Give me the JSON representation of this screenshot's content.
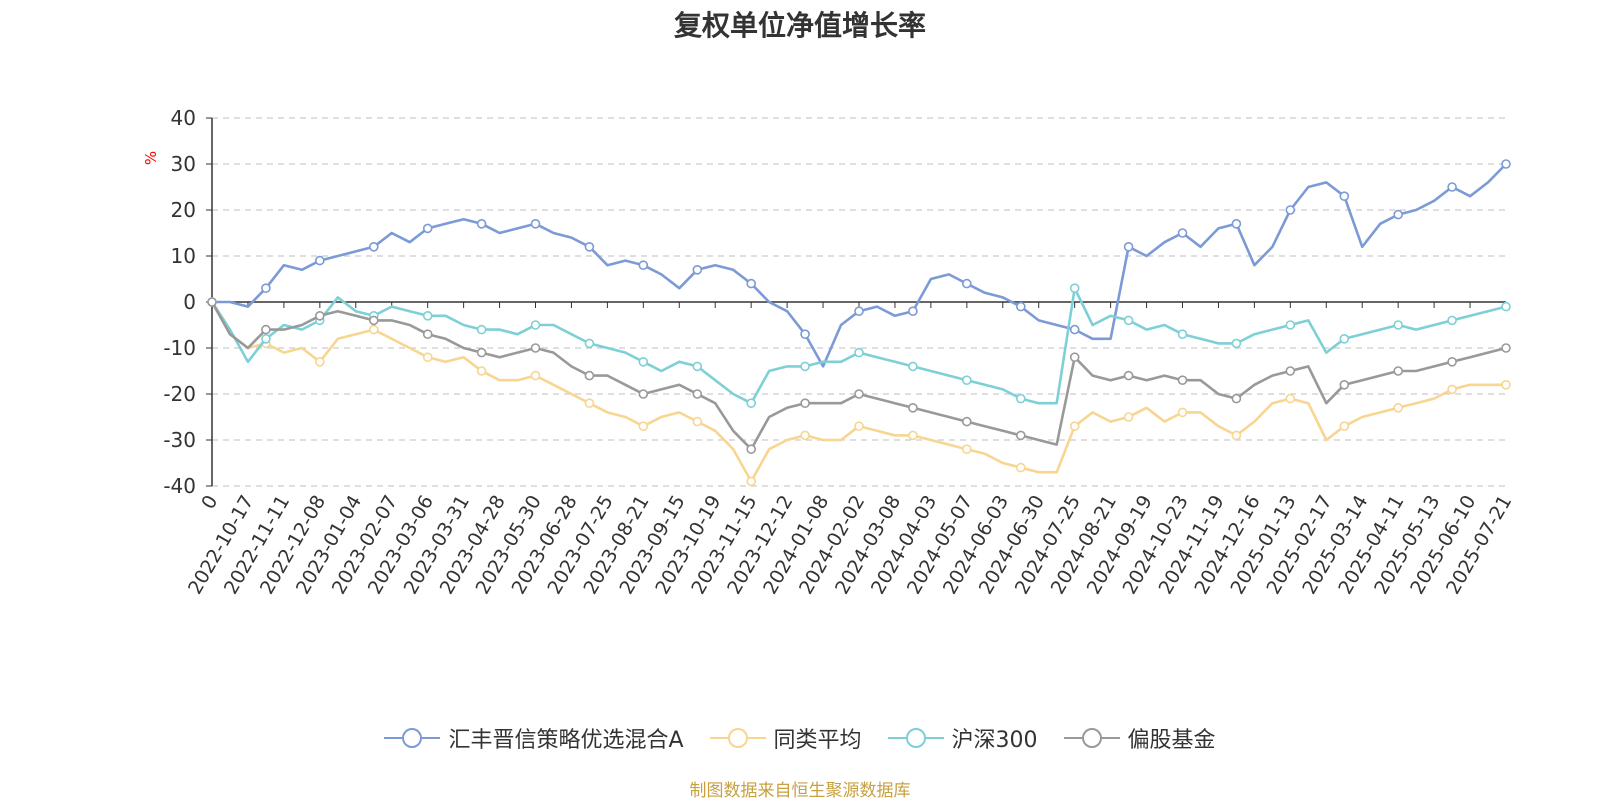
{
  "chart_data": {
    "type": "line",
    "title": "复权单位净值增长率",
    "ylabel": "%",
    "ylim": [
      -40,
      40
    ],
    "yticks": [
      40,
      30,
      20,
      10,
      0,
      -10,
      -20,
      -30,
      -40
    ],
    "x_start_label": "0",
    "xticks": [
      "2022-10-17",
      "2022-11-11",
      "2022-12-08",
      "2023-01-04",
      "2023-02-07",
      "2023-03-06",
      "2023-03-31",
      "2023-04-28",
      "2023-05-30",
      "2023-06-28",
      "2023-07-25",
      "2023-08-21",
      "2023-09-15",
      "2023-10-19",
      "2023-11-15",
      "2023-12-12",
      "2024-01-08",
      "2024-02-02",
      "2024-03-08",
      "2024-04-03",
      "2024-05-07",
      "2024-06-03",
      "2024-06-30",
      "2024-07-25",
      "2024-08-21",
      "2024-09-19",
      "2024-10-23",
      "2024-11-19",
      "2024-12-16",
      "2025-01-13",
      "2025-02-17",
      "2025-03-14",
      "2025-04-11",
      "2025-05-13",
      "2025-06-10",
      "2025-07-21"
    ],
    "grid": true,
    "legend_position": "bottom",
    "series": [
      {
        "name": "汇丰晋信策略优选混合A",
        "color": "#7b9ad6",
        "values": [
          0,
          0,
          -1,
          3,
          8,
          7,
          9,
          10,
          11,
          12,
          15,
          13,
          16,
          17,
          18,
          17,
          15,
          16,
          17,
          15,
          14,
          12,
          8,
          9,
          8,
          6,
          3,
          7,
          8,
          7,
          4,
          0,
          -2,
          -7,
          -14,
          -5,
          -2,
          -1,
          -3,
          -2,
          5,
          6,
          4,
          2,
          1,
          -1,
          -4,
          -5,
          -6,
          -8,
          -8,
          12,
          10,
          13,
          15,
          12,
          16,
          17,
          8,
          12,
          20,
          25,
          26,
          23,
          12,
          17,
          19,
          20,
          22,
          25,
          23,
          26,
          30
        ]
      },
      {
        "name": "同类平均",
        "color": "#f8d590",
        "values": [
          0,
          -7,
          -10,
          -9,
          -11,
          -10,
          -13,
          -8,
          -7,
          -6,
          -8,
          -10,
          -12,
          -13,
          -12,
          -15,
          -17,
          -17,
          -16,
          -18,
          -20,
          -22,
          -24,
          -25,
          -27,
          -25,
          -24,
          -26,
          -28,
          -32,
          -39,
          -32,
          -30,
          -29,
          -30,
          -30,
          -27,
          -28,
          -29,
          -29,
          -30,
          -31,
          -32,
          -33,
          -35,
          -36,
          -37,
          -37,
          -27,
          -24,
          -26,
          -25,
          -23,
          -26,
          -24,
          -24,
          -27,
          -29,
          -26,
          -22,
          -21,
          -22,
          -30,
          -27,
          -25,
          -24,
          -23,
          -22,
          -21,
          -19,
          -18,
          -18,
          -18
        ]
      },
      {
        "name": "沪深300",
        "color": "#7dd0d6",
        "values": [
          0,
          -6,
          -13,
          -8,
          -5,
          -6,
          -4,
          1,
          -2,
          -3,
          -1,
          -2,
          -3,
          -3,
          -5,
          -6,
          -6,
          -7,
          -5,
          -5,
          -7,
          -9,
          -10,
          -11,
          -13,
          -15,
          -13,
          -14,
          -17,
          -20,
          -22,
          -15,
          -14,
          -14,
          -13,
          -13,
          -11,
          -12,
          -13,
          -14,
          -15,
          -16,
          -17,
          -18,
          -19,
          -21,
          -22,
          -22,
          3,
          -5,
          -3,
          -4,
          -6,
          -5,
          -7,
          -8,
          -9,
          -9,
          -7,
          -6,
          -5,
          -4,
          -11,
          -8,
          -7,
          -6,
          -5,
          -6,
          -5,
          -4,
          -3,
          -2,
          -1
        ]
      },
      {
        "name": "偏股基金",
        "color": "#999999",
        "values": [
          0,
          -7,
          -10,
          -6,
          -6,
          -5,
          -3,
          -2,
          -3,
          -4,
          -4,
          -5,
          -7,
          -8,
          -10,
          -11,
          -12,
          -11,
          -10,
          -11,
          -14,
          -16,
          -16,
          -18,
          -20,
          -19,
          -18,
          -20,
          -22,
          -28,
          -32,
          -25,
          -23,
          -22,
          -22,
          -22,
          -20,
          -21,
          -22,
          -23,
          -24,
          -25,
          -26,
          -27,
          -28,
          -29,
          -30,
          -31,
          -12,
          -16,
          -17,
          -16,
          -17,
          -16,
          -17,
          -17,
          -20,
          -21,
          -18,
          -16,
          -15,
          -14,
          -22,
          -18,
          -17,
          -16,
          -15,
          -15,
          -14,
          -13,
          -12,
          -11,
          -10
        ]
      }
    ]
  },
  "source_note": "制图数据来自恒生聚源数据库"
}
